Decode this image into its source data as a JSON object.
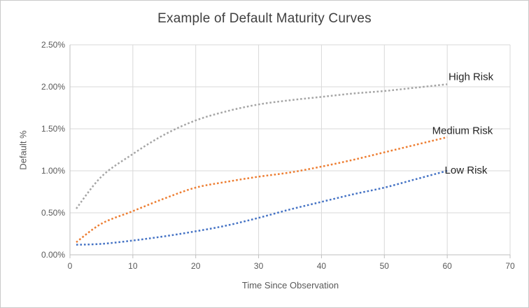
{
  "chart_data": {
    "type": "line",
    "title": "Example of Default Maturity Curves",
    "xlabel": "Time Since Observation",
    "ylabel": "Default %",
    "xlim": [
      0,
      70
    ],
    "ylim": [
      0,
      2.5
    ],
    "y_unit": "percent",
    "grid": true,
    "legend_position": "none",
    "line_style": "dotted",
    "x_ticks": [
      "0",
      "10",
      "20",
      "30",
      "40",
      "50",
      "60",
      "70"
    ],
    "y_ticks": [
      "0.00%",
      "0.50%",
      "1.00%",
      "1.50%",
      "2.00%",
      "2.50%"
    ],
    "x": [
      1,
      5,
      10,
      15,
      20,
      25,
      30,
      35,
      40,
      45,
      50,
      55,
      60
    ],
    "series": [
      {
        "name": "High Risk",
        "color": "#a5a5a5",
        "values": [
          0.55,
          0.93,
          1.2,
          1.43,
          1.6,
          1.71,
          1.79,
          1.84,
          1.88,
          1.92,
          1.95,
          1.99,
          2.03
        ],
        "label": {
          "text": "High Risk",
          "x": 60.2,
          "y": 2.12
        }
      },
      {
        "name": "Medium Risk",
        "color": "#ed7d31",
        "values": [
          0.15,
          0.37,
          0.52,
          0.67,
          0.8,
          0.87,
          0.93,
          0.98,
          1.05,
          1.13,
          1.22,
          1.31,
          1.4
        ],
        "label": {
          "text": "Medium Risk",
          "x": 57.6,
          "y": 1.48
        }
      },
      {
        "name": "Low Risk",
        "color": "#4472c4",
        "values": [
          0.12,
          0.13,
          0.17,
          0.22,
          0.28,
          0.35,
          0.44,
          0.54,
          0.63,
          0.72,
          0.8,
          0.9,
          1.0
        ],
        "label": {
          "text": "Low Risk",
          "x": 59.6,
          "y": 1.01
        }
      }
    ],
    "colors": {
      "gridline": "#d9d9d9",
      "axis_line": "#bfbfbf",
      "tick_text": "#595959",
      "title_text": "#404040",
      "series_label_text": "#262626",
      "background": "#ffffff"
    }
  }
}
